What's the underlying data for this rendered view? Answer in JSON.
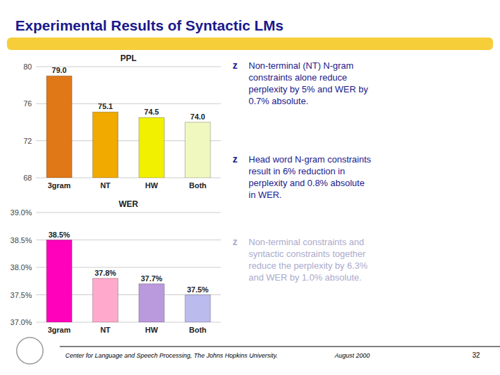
{
  "title": "Experimental Results of Syntactic LMs",
  "title_color": "#1a1a8c",
  "annotations": [
    {
      "bullet": "z",
      "text": "Non-terminal (NT) N-gram\nconstraints alone reduce\nperplexity by 5% and WER by\n0.7% absolute.",
      "color": "#1a1a8c"
    },
    {
      "bullet": "z",
      "text": "Head word N-gram constraints\nresult in 6% reduction in\nperplexity and 0.8% absolute\nin WER.",
      "color": "#1a1a8c"
    },
    {
      "bullet": "z",
      "text": "Non-terminal constraints and\nsyntactic constraints together\nreduce the perplexity by 6.3%\nand WER by 1.0% absolute.",
      "color": "#aaaacc"
    }
  ],
  "footer": [
    "Center for Language and Speech Processing,  The Johns Hopkins University.",
    "August 2000",
    "32"
  ],
  "chart_data": [
    {
      "type": "bar",
      "title": "PPL",
      "categories": [
        "3gram",
        "NT",
        "HW",
        "Both"
      ],
      "values": [
        79.0,
        75.1,
        74.5,
        74.0
      ],
      "value_labels": [
        "79.0",
        "75.1",
        "74.5",
        "74.0"
      ],
      "colors": [
        "#e07818",
        "#f0aa00",
        "#f0f000",
        "#f0f8c0"
      ],
      "ylim": [
        68,
        80
      ],
      "yticks": [
        68,
        72,
        76,
        80
      ],
      "grid": true,
      "data_labels": true
    },
    {
      "type": "bar",
      "title": "WER",
      "categories": [
        "3gram",
        "NT",
        "HW",
        "Both"
      ],
      "values": [
        38.5,
        37.8,
        37.7,
        37.5
      ],
      "value_labels": [
        "38.5%",
        "37.8%",
        "37.7%",
        "37.5%"
      ],
      "colors": [
        "#ff00bb",
        "#ffaacc",
        "#bb99dd",
        "#bbbbee"
      ],
      "ylim": [
        37.0,
        39.0
      ],
      "yticks": [
        {
          "value": 37.0,
          "label": "37.0%"
        },
        {
          "value": 37.5,
          "label": "37.5%"
        },
        {
          "value": 38.0,
          "label": "38.0%"
        },
        {
          "value": 38.5,
          "label": "38.5%"
        },
        {
          "value": 39.0,
          "label": "39.0%"
        }
      ],
      "grid": true,
      "data_labels": true
    }
  ]
}
